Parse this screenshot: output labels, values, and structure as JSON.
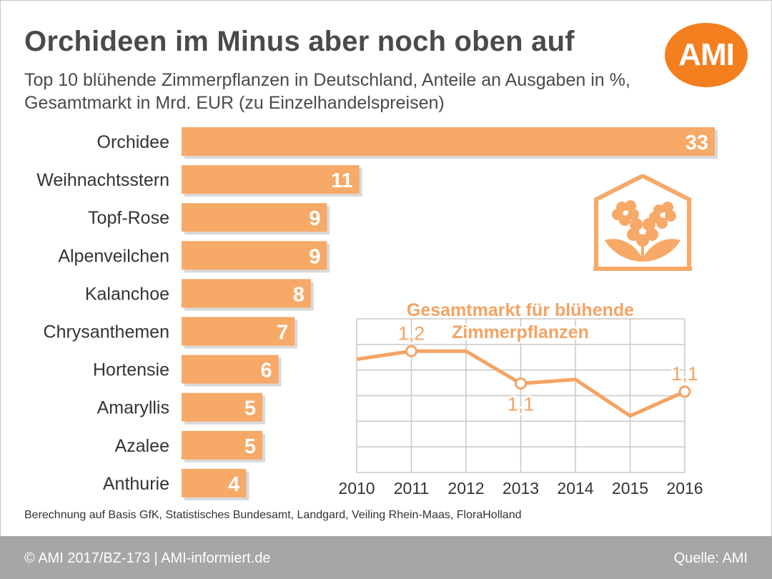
{
  "title": "Orchideen im Minus aber noch oben auf",
  "subtitle_line1": "Top 10 blühende Zimmerpflanzen in Deutschland, Anteile an Ausgaben in %,",
  "subtitle_line2": "Gesamtmarkt in Mrd. EUR (zu Einzelhandelspreisen)",
  "logo_text": "AMI",
  "footnote": "Berechnung auf Basis GfK, Statistisches Bundesamt, Landgard, Veiling Rhein-Maas, FloraHolland",
  "footer": {
    "copyright": "© AMI 2017/BZ-173 | AMI-informiert.de",
    "source": "Quelle: AMI"
  },
  "colors": {
    "bar": "#f7a968",
    "line": "#f4a364",
    "logo": "#f47f1f",
    "footer": "#a6a6a6",
    "grid": "#c8c8c8"
  },
  "icon": "house-with-flowers-icon",
  "chart_data": [
    {
      "type": "bar",
      "orientation": "horizontal",
      "categories": [
        "Orchidee",
        "Weihnachtsstern",
        "Topf-Rose",
        "Alpenveilchen",
        "Kalanchoe",
        "Chrysanthemen",
        "Hortensie",
        "Amaryllis",
        "Azalee",
        "Anthurie"
      ],
      "values": [
        33,
        11,
        9,
        9,
        8,
        7,
        6,
        5,
        5,
        4
      ],
      "value_labels": [
        "33",
        "11",
        "9",
        "9",
        "8",
        "7",
        "6",
        "5",
        "5",
        "4"
      ]
    },
    {
      "type": "line",
      "title_line1": "Gesamtmarkt für blühende",
      "title_line2": "Zimmerpflanzen",
      "x": [
        "2010",
        "2011",
        "2012",
        "2013",
        "2014",
        "2015",
        "2016"
      ],
      "y": [
        1.18,
        1.2,
        1.2,
        1.12,
        1.13,
        1.04,
        1.1
      ],
      "labeled_points": [
        {
          "x": "2011",
          "label": "1,2"
        },
        {
          "x": "2013",
          "label": "1,1"
        },
        {
          "x": "2016",
          "label": "1,1"
        }
      ],
      "ylim": [
        0.9,
        1.28
      ],
      "grid": true
    }
  ]
}
